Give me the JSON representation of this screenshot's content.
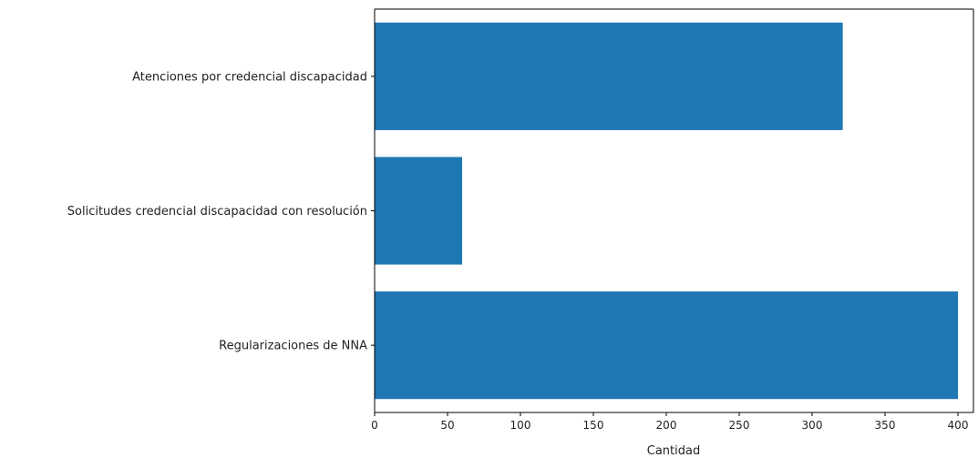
{
  "chart_data": {
    "type": "bar",
    "orientation": "horizontal",
    "categories": [
      "Atenciones por credencial discapacidad",
      "Solicitudes credencial discapacidad con resolución",
      "Regularizaciones de NNA"
    ],
    "values": [
      321,
      60,
      400
    ],
    "xlabel": "Cantidad",
    "xlim": [
      0,
      400
    ],
    "xticks": [
      0,
      50,
      100,
      150,
      200,
      250,
      300,
      350,
      400
    ],
    "grid": false,
    "bar_color": "#1f77b4"
  }
}
